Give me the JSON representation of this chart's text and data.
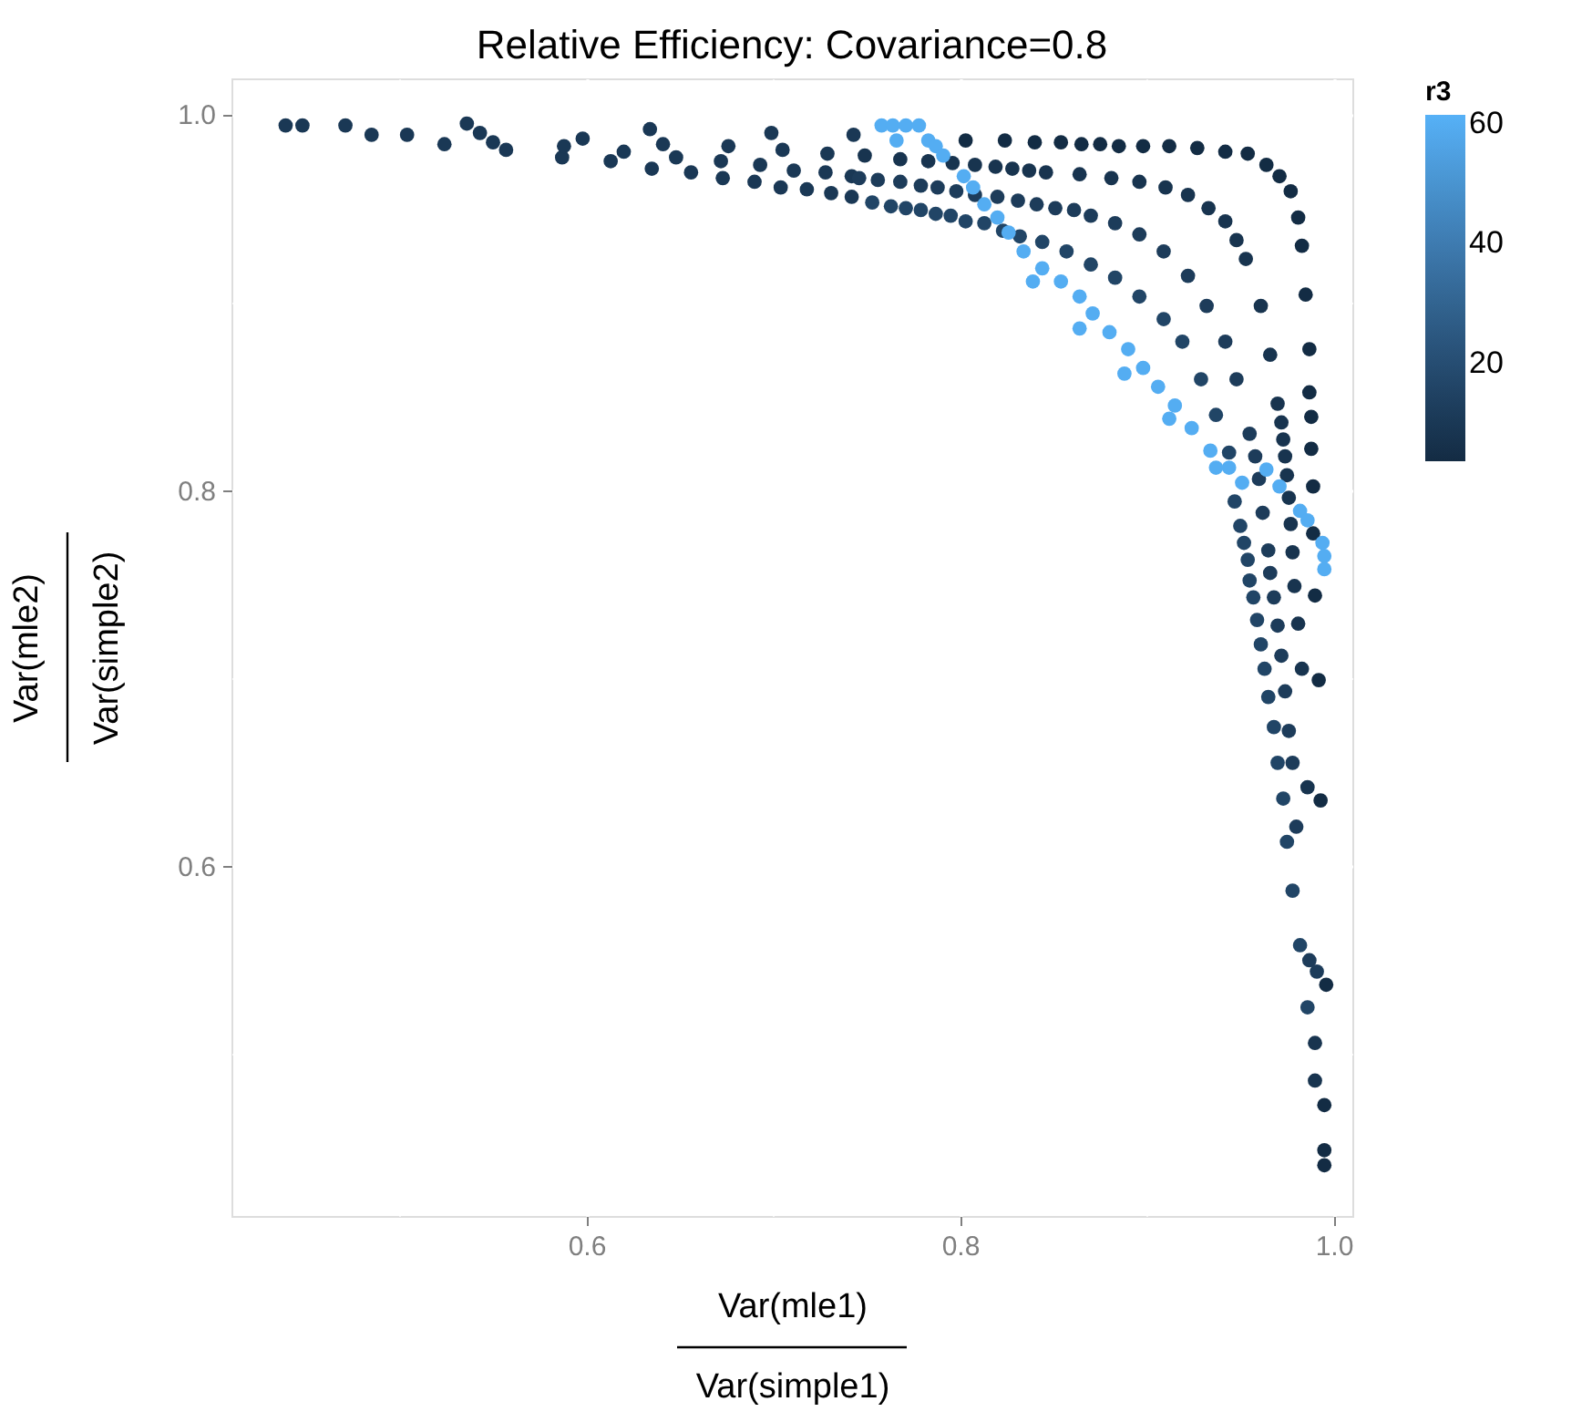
{
  "chart_data": {
    "type": "scatter",
    "title": "Relative Efficiency: Covariance=0.8",
    "xlabel": "Var(mle1)\nVar(simple1)",
    "ylabel": "Var(mle2)\nVar(simple2)",
    "legend_title": "r3",
    "xlim": [
      0.41,
      1.01
    ],
    "ylim": [
      0.414,
      1.019
    ],
    "xticks": [
      {
        "value": 0.5,
        "label": null
      },
      0.6,
      {
        "value": 0.7,
        "label": null
      },
      0.8,
      {
        "value": 0.9,
        "label": null
      },
      {
        "value": 1,
        "label": "1.0"
      }
    ],
    "yticks": [
      {
        "value": 0.5,
        "label": null
      },
      0.6,
      {
        "value": 0.7,
        "label": null
      },
      0.8,
      {
        "value": 0.9,
        "label": null
      },
      {
        "value": 1,
        "label": "1.0"
      }
    ],
    "clim": [
      3.7,
      61.5
    ],
    "cticks": [
      20,
      40,
      60
    ],
    "grid": true,
    "series": [
      {
        "x": [
          0.439,
          0.448,
          0.471,
          0.485,
          0.504,
          0.524,
          0.536,
          0.543,
          0.55,
          0.557,
          0.587,
          0.588,
          0.598,
          0.613,
          0.62,
          0.634,
          0.641,
          0.648,
          0.635,
          0.656,
          0.672,
          0.676,
          0.673,
          0.699,
          0.705,
          0.711,
          0.69,
          0.693,
          0.704,
          0.718,
          0.729,
          0.728,
          0.731,
          0.743,
          0.742,
          0.742
        ],
        "values": [
          0.994,
          0.994,
          0.994,
          0.989,
          0.989,
          0.984,
          0.995,
          0.99,
          0.985,
          0.981,
          0.977,
          0.983,
          0.987,
          0.975,
          0.98,
          0.992,
          0.984,
          0.977,
          0.971,
          0.969,
          0.975,
          0.983,
          0.966,
          0.99,
          0.981,
          0.97,
          0.964,
          0.973,
          0.961,
          0.96,
          0.979,
          0.969,
          0.958,
          0.989,
          0.967,
          0.956
        ],
        "cvalues": [
          10,
          10,
          10,
          10,
          10,
          10,
          10,
          10,
          10,
          10,
          10,
          10,
          10,
          10,
          10,
          10,
          10,
          10,
          10,
          10,
          10,
          10,
          10,
          10,
          10,
          10,
          10,
          10,
          10,
          10,
          10,
          10,
          10,
          10,
          10,
          10
        ]
      },
      {
        "x": [
          0.803,
          0.824,
          0.84,
          0.854,
          0.865,
          0.875,
          0.885,
          0.898,
          0.912,
          0.927,
          0.942,
          0.954,
          0.964,
          0.971,
          0.977,
          0.981,
          0.983,
          0.985,
          0.987,
          0.987,
          0.988,
          0.988,
          0.989,
          0.989,
          0.99,
          0.992,
          0.993,
          0.996,
          0.995,
          0.995,
          0.995
        ],
        "values": [
          0.986,
          0.986,
          0.985,
          0.985,
          0.984,
          0.984,
          0.983,
          0.983,
          0.983,
          0.982,
          0.98,
          0.979,
          0.973,
          0.967,
          0.959,
          0.945,
          0.93,
          0.904,
          0.875,
          0.852,
          0.839,
          0.822,
          0.802,
          0.777,
          0.744,
          0.699,
          0.635,
          0.537,
          0.473,
          0.449,
          0.441
        ],
        "cvalues": [
          4,
          4,
          4,
          4,
          4,
          4,
          4,
          4,
          4,
          4,
          4,
          4,
          4,
          4,
          4,
          4,
          4,
          4,
          4,
          4,
          4,
          4,
          4,
          4,
          4,
          4,
          4,
          4,
          4,
          4,
          4
        ]
      },
      {
        "x": [
          0.749,
          0.768,
          0.783,
          0.796,
          0.808,
          0.819,
          0.828,
          0.837,
          0.846,
          0.864,
          0.881,
          0.896,
          0.91,
          0.922,
          0.933,
          0.942,
          0.948,
          0.953,
          0.961,
          0.966,
          0.97,
          0.972,
          0.973,
          0.974,
          0.975,
          0.976,
          0.977,
          0.978,
          0.979,
          0.981,
          0.983,
          0.986,
          0.99,
          0.99
        ],
        "values": [
          0.978,
          0.976,
          0.975,
          0.974,
          0.973,
          0.972,
          0.971,
          0.97,
          0.969,
          0.968,
          0.966,
          0.964,
          0.961,
          0.957,
          0.95,
          0.943,
          0.933,
          0.923,
          0.898,
          0.872,
          0.846,
          0.836,
          0.827,
          0.818,
          0.808,
          0.796,
          0.782,
          0.767,
          0.749,
          0.729,
          0.705,
          0.642,
          0.506,
          0.486
        ],
        "cvalues": [
          8,
          8,
          8,
          8,
          8,
          8,
          8,
          8,
          8,
          8,
          8,
          8,
          8,
          8,
          8,
          8,
          8,
          8,
          8,
          8,
          8,
          8,
          8,
          8,
          8,
          8,
          8,
          8,
          8,
          8,
          8,
          8,
          8,
          8
        ]
      },
      {
        "x": [
          0.746,
          0.756,
          0.768,
          0.779,
          0.788,
          0.798,
          0.808,
          0.82,
          0.831,
          0.841,
          0.851,
          0.861,
          0.87,
          0.883,
          0.896,
          0.909,
          0.922,
          0.932,
          0.942,
          0.948,
          0.955,
          0.958,
          0.96,
          0.962,
          0.965,
          0.966,
          0.968,
          0.97,
          0.972,
          0.974,
          0.976,
          0.978,
          0.98,
          0.987,
          0.991
        ],
        "values": [
          0.966,
          0.965,
          0.964,
          0.962,
          0.961,
          0.959,
          0.957,
          0.956,
          0.954,
          0.952,
          0.95,
          0.949,
          0.946,
          0.942,
          0.936,
          0.927,
          0.914,
          0.898,
          0.879,
          0.859,
          0.83,
          0.818,
          0.806,
          0.788,
          0.768,
          0.756,
          0.743,
          0.728,
          0.712,
          0.693,
          0.672,
          0.655,
          0.621,
          0.55,
          0.544
        ],
        "cvalues": [
          12,
          12,
          12,
          12,
          12,
          12,
          12,
          12,
          12,
          12,
          12,
          12,
          12,
          12,
          12,
          12,
          12,
          12,
          12,
          12,
          12,
          12,
          12,
          12,
          12,
          12,
          12,
          12,
          12,
          12,
          12,
          12,
          12,
          12,
          12
        ]
      },
      {
        "x": [
          0.753,
          0.763,
          0.771,
          0.779,
          0.787,
          0.795,
          0.803,
          0.813,
          0.823,
          0.832,
          0.844,
          0.857,
          0.87,
          0.883,
          0.896,
          0.909,
          0.919,
          0.929,
          0.937,
          0.944,
          0.947,
          0.95,
          0.952,
          0.954,
          0.955,
          0.957,
          0.959,
          0.961,
          0.963,
          0.965,
          0.968,
          0.97,
          0.973,
          0.975,
          0.978,
          0.982,
          0.986
        ],
        "values": [
          0.953,
          0.951,
          0.95,
          0.949,
          0.947,
          0.946,
          0.943,
          0.942,
          0.938,
          0.935,
          0.932,
          0.927,
          0.92,
          0.913,
          0.903,
          0.891,
          0.879,
          0.859,
          0.84,
          0.82,
          0.794,
          0.781,
          0.772,
          0.763,
          0.752,
          0.743,
          0.731,
          0.718,
          0.705,
          0.69,
          0.674,
          0.655,
          0.636,
          0.613,
          0.587,
          0.558,
          0.525
        ],
        "cvalues": [
          16,
          16,
          16,
          16,
          16,
          16,
          16,
          16,
          16,
          16,
          16,
          16,
          16,
          16,
          16,
          16,
          16,
          16,
          16,
          16,
          16,
          16,
          16,
          16,
          16,
          16,
          16,
          16,
          16,
          16,
          16,
          16,
          16,
          16,
          16,
          16,
          16
        ]
      },
      {
        "x": [
          0.758,
          0.764,
          0.771,
          0.778,
          0.766,
          0.783,
          0.787,
          0.791,
          0.802,
          0.807,
          0.813,
          0.82,
          0.826,
          0.834,
          0.844,
          0.854,
          0.864,
          0.871,
          0.88,
          0.89,
          0.898,
          0.906,
          0.915,
          0.924,
          0.934,
          0.944,
          0.951,
          0.964,
          0.971,
          0.982,
          0.986,
          0.994,
          0.995,
          0.995,
          0.839,
          0.864,
          0.888,
          0.912,
          0.937
        ],
        "values": [
          0.994,
          0.994,
          0.994,
          0.994,
          0.986,
          0.986,
          0.983,
          0.978,
          0.967,
          0.961,
          0.952,
          0.945,
          0.937,
          0.927,
          0.918,
          0.911,
          0.903,
          0.894,
          0.884,
          0.875,
          0.865,
          0.855,
          0.845,
          0.833,
          0.821,
          0.812,
          0.804,
          0.811,
          0.802,
          0.789,
          0.784,
          0.772,
          0.765,
          0.758,
          0.911,
          0.886,
          0.862,
          0.838,
          0.812
        ],
        "cvalues": [
          60,
          60,
          60,
          60,
          60,
          60,
          60,
          60,
          60,
          60,
          60,
          60,
          60,
          60,
          60,
          60,
          60,
          60,
          60,
          60,
          60,
          60,
          60,
          60,
          60,
          60,
          60,
          60,
          60,
          60,
          60,
          60,
          60,
          60,
          60,
          60,
          60,
          60,
          60
        ]
      }
    ]
  }
}
